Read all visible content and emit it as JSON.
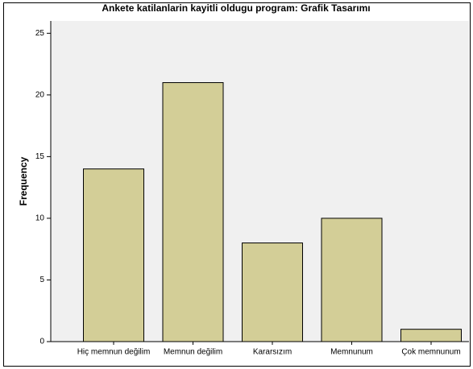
{
  "chart_data": {
    "type": "bar",
    "title": "Ankete katilanlarin kayitli oldugu program: Grafik Tasarımı",
    "y_label": "Frequency",
    "categories": [
      "Hiç memnun değilim",
      "Memnun değilim",
      "Kararsızım",
      "Memnunum",
      "Çok memnunum"
    ],
    "values": [
      14,
      21,
      8,
      10,
      1
    ],
    "color": "#d3ce97",
    "ylim": [
      0,
      26
    ],
    "yticks": [
      0,
      5,
      10,
      15,
      20,
      25
    ],
    "grid": false
  }
}
